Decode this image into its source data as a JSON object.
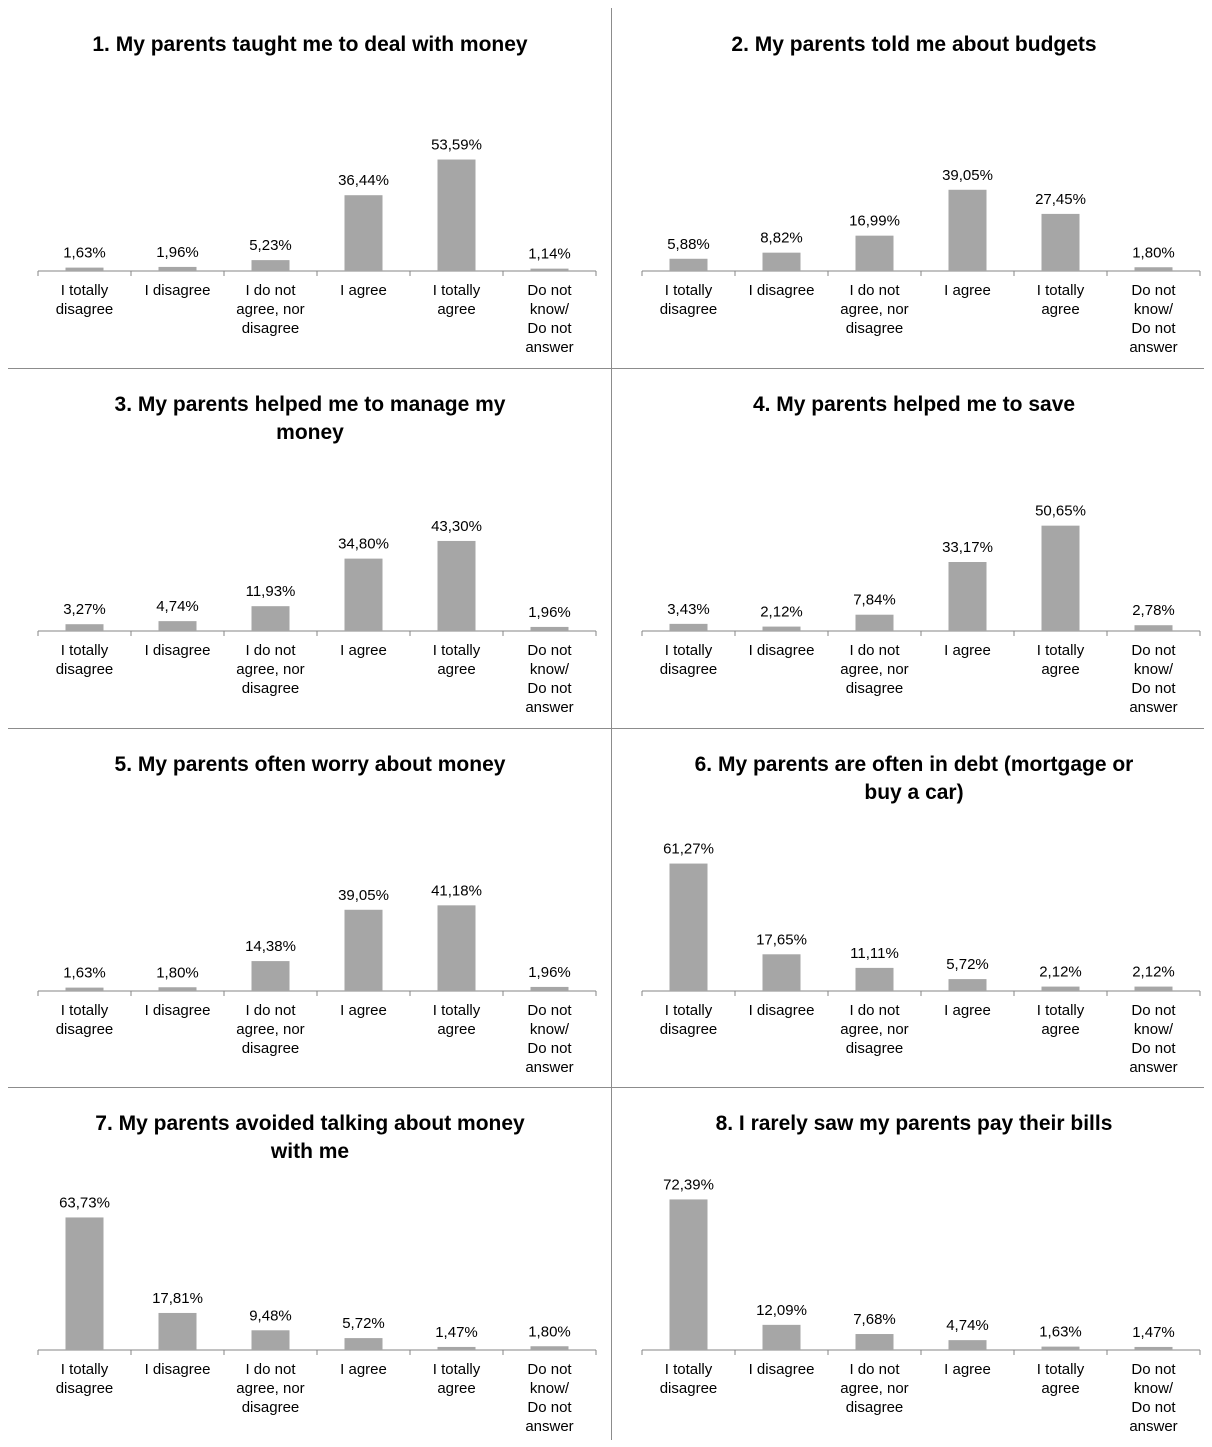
{
  "categories": [
    "I totally\ndisagree",
    "I disagree",
    "I do not\nagree, nor\ndisagree",
    "I agree",
    "I totally\nagree",
    "Do not\nknow/\nDo not\nanswer"
  ],
  "colors": {
    "bar": "#a6a6a6",
    "axis": "#868686",
    "border": "#8c8c8c"
  },
  "chart_data": [
    {
      "type": "bar",
      "title": "1. My parents taught me to deal with money",
      "values": [
        1.63,
        1.96,
        5.23,
        36.44,
        53.59,
        1.14
      ],
      "data_labels": [
        "1,63%",
        "1,96%",
        "5,23%",
        "36,44%",
        "53,59%",
        "1,14%"
      ]
    },
    {
      "type": "bar",
      "title": "2. My parents told me about budgets",
      "values": [
        5.88,
        8.82,
        16.99,
        39.05,
        27.45,
        1.8
      ],
      "data_labels": [
        "5,88%",
        "8,82%",
        "16,99%",
        "39,05%",
        "27,45%",
        "1,80%"
      ]
    },
    {
      "type": "bar",
      "title": "3. My parents helped me to manage my money",
      "values": [
        3.27,
        4.74,
        11.93,
        34.8,
        43.3,
        1.96
      ],
      "data_labels": [
        "3,27%",
        "4,74%",
        "11,93%",
        "34,80%",
        "43,30%",
        "1,96%"
      ]
    },
    {
      "type": "bar",
      "title": "4. My parents helped me to save",
      "values": [
        3.43,
        2.12,
        7.84,
        33.17,
        50.65,
        2.78
      ],
      "data_labels": [
        "3,43%",
        "2,12%",
        "7,84%",
        "33,17%",
        "50,65%",
        "2,78%"
      ]
    },
    {
      "type": "bar",
      "title": "5. My parents often worry about money",
      "values": [
        1.63,
        1.8,
        14.38,
        39.05,
        41.18,
        1.96
      ],
      "data_labels": [
        "1,63%",
        "1,80%",
        "14,38%",
        "39,05%",
        "41,18%",
        "1,96%"
      ]
    },
    {
      "type": "bar",
      "title": "6. My parents are often in debt (mortgage or buy a car)",
      "values": [
        61.27,
        17.65,
        11.11,
        5.72,
        2.12,
        2.12
      ],
      "data_labels": [
        "61,27%",
        "17,65%",
        "11,11%",
        "5,72%",
        "2,12%",
        "2,12%"
      ]
    },
    {
      "type": "bar",
      "title": "7. My parents avoided talking about money with me",
      "values": [
        63.73,
        17.81,
        9.48,
        5.72,
        1.47,
        1.8
      ],
      "data_labels": [
        "63,73%",
        "17,81%",
        "9,48%",
        "5,72%",
        "1,47%",
        "1,80%"
      ]
    },
    {
      "type": "bar",
      "title": "8. I rarely saw my parents pay their bills",
      "values": [
        72.39,
        12.09,
        7.68,
        4.74,
        1.63,
        1.47
      ],
      "data_labels": [
        "72,39%",
        "12,09%",
        "7,68%",
        "4,74%",
        "1,63%",
        "1,47%"
      ]
    }
  ]
}
